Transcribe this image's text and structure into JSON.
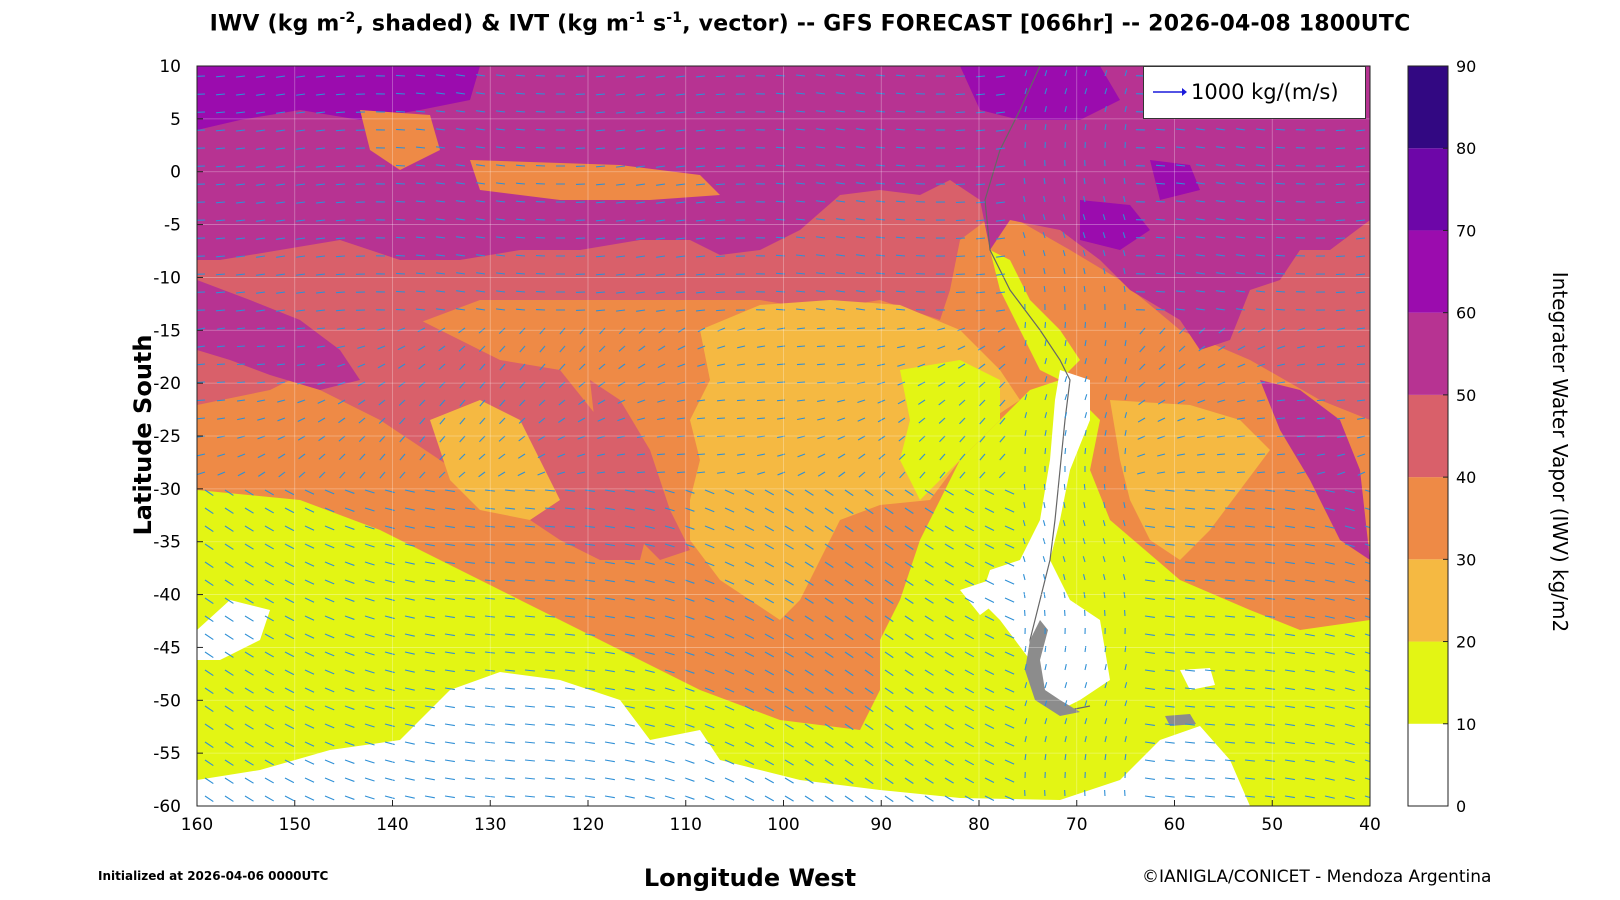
{
  "title": {
    "p1": "IWV (kg m",
    "s1": "-2",
    "p2": ", shaded) & IVT (kg m",
    "s2": "-1",
    "p3": " s",
    "s3": "-1",
    "p4": ", vector) -- GFS FORECAST [066hr] -- 2026-04-08 1800UTC"
  },
  "x_axis": {
    "label": "Longitude West",
    "ticks": [
      "160",
      "150",
      "140",
      "130",
      "120",
      "110",
      "100",
      "90",
      "80",
      "70",
      "60",
      "50",
      "40"
    ]
  },
  "y_axis": {
    "label": "Latitude South",
    "ticks": [
      "10",
      "5",
      "0",
      "-5",
      "-10",
      "-15",
      "-20",
      "-25",
      "-30",
      "-35",
      "-40",
      "-45",
      "-50",
      "-55",
      "-60"
    ]
  },
  "colorbar": {
    "label": "Integrater Water Vapor (IWV) kg/m2",
    "ticks": [
      "0",
      "10",
      "20",
      "30",
      "40",
      "50",
      "60",
      "70",
      "80",
      "90"
    ],
    "levels": [
      {
        "from": 0,
        "to": 10,
        "color": "#ffffff"
      },
      {
        "from": 10,
        "to": 20,
        "color": "#e3f514"
      },
      {
        "from": 20,
        "to": 30,
        "color": "#f5b942"
      },
      {
        "from": 30,
        "to": 40,
        "color": "#ee8a46"
      },
      {
        "from": 40,
        "to": 50,
        "color": "#d9606a"
      },
      {
        "from": 50,
        "to": 60,
        "color": "#b73392"
      },
      {
        "from": 60,
        "to": 70,
        "color": "#9b0cae"
      },
      {
        "from": 70,
        "to": 80,
        "color": "#6d06a8"
      },
      {
        "from": 80,
        "to": 90,
        "color": "#320882"
      }
    ]
  },
  "legend": {
    "label": "1000 kg/(m/s)",
    "arrow_color": "#1a1adb"
  },
  "vector_color": "#2e8fd6",
  "land_gray": "#8c8c8c",
  "footer": {
    "initialized": "Initialized at 2026-04-06 0000UTC",
    "credit": "©IANIGLA/CONICET - Mendoza Argentina"
  }
}
